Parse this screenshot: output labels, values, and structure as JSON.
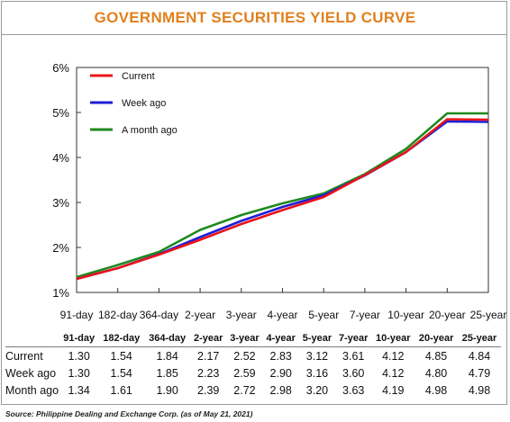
{
  "chart_data": {
    "type": "line",
    "title": "GOVERNMENT SECURITIES YIELD CURVE",
    "categories": [
      "91-day",
      "182-day",
      "364-day",
      "2-year",
      "3-year",
      "4-year",
      "5-year",
      "7-year",
      "10-year",
      "20-year",
      "25-year"
    ],
    "y_tick_labels": [
      "1%",
      "2%",
      "3%",
      "4%",
      "5%",
      "6%"
    ],
    "ylim": [
      1,
      6
    ],
    "grid": false,
    "legend_position": "top-left",
    "series": [
      {
        "name": "Current",
        "color": "#e8141b",
        "values": [
          1.3,
          1.54,
          1.84,
          2.17,
          2.52,
          2.83,
          3.12,
          3.61,
          4.12,
          4.85,
          4.84
        ]
      },
      {
        "name": "Week ago",
        "color": "#1d1fd6",
        "values": [
          1.3,
          1.54,
          1.85,
          2.23,
          2.59,
          2.9,
          3.16,
          3.6,
          4.12,
          4.8,
          4.79
        ]
      },
      {
        "name": "A month ago",
        "color": "#1e8a1e",
        "values": [
          1.34,
          1.61,
          1.9,
          2.39,
          2.72,
          2.98,
          3.2,
          3.63,
          4.19,
          4.98,
          4.98
        ]
      }
    ]
  },
  "table": {
    "rows": [
      {
        "label": "Current",
        "values": [
          "1.30",
          "1.54",
          "1.84",
          "2.17",
          "2.52",
          "2.83",
          "3.12",
          "3.61",
          "4.12",
          "4.85",
          "4.84"
        ]
      },
      {
        "label": "Week ago",
        "values": [
          "1.30",
          "1.54",
          "1.85",
          "2.23",
          "2.59",
          "2.90",
          "3.16",
          "3.60",
          "4.12",
          "4.80",
          "4.79"
        ]
      },
      {
        "label": "Month ago",
        "values": [
          "1.34",
          "1.61",
          "1.90",
          "2.39",
          "2.72",
          "2.98",
          "3.20",
          "3.63",
          "4.19",
          "4.98",
          "4.98"
        ]
      }
    ]
  },
  "source": "Source: Philippine Dealing and Exchange Corp. (as of May 21, 2021)"
}
